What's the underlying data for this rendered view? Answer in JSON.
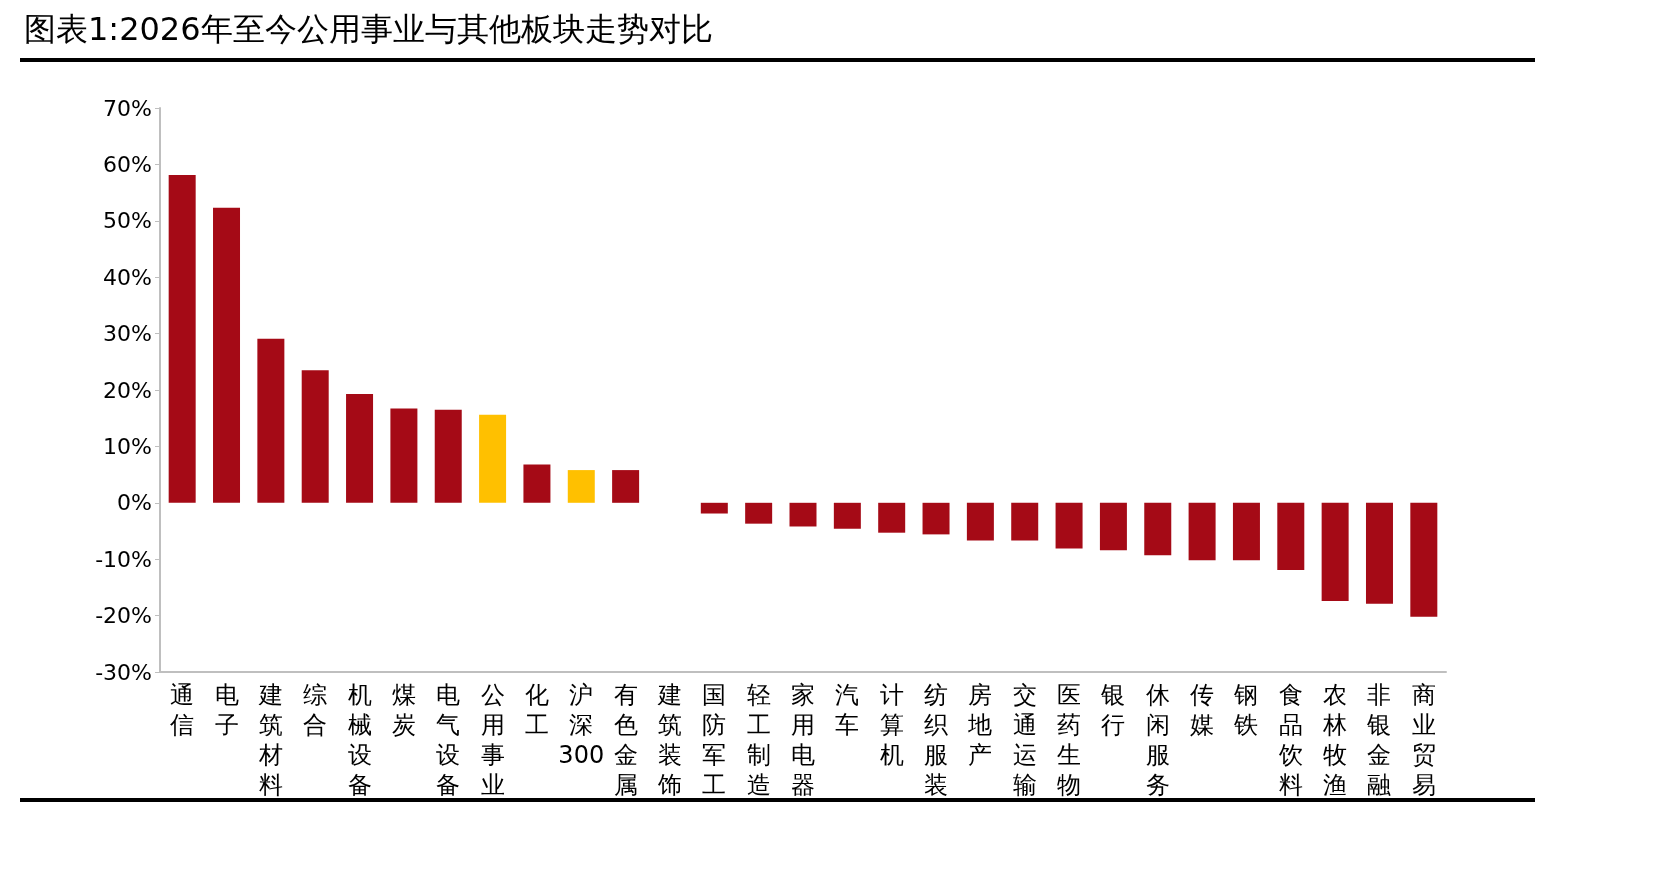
{
  "chart_data": {
    "type": "bar",
    "title": "图表1:2026年至今公用事业与其他板块走势对比",
    "categories": [
      "通信",
      "电子",
      "建筑材料",
      "综合",
      "机械设备",
      "煤炭",
      "电气设备",
      "公用事业",
      "化工",
      "沪深300",
      "有色金属",
      "建筑装饰",
      "国防军工",
      "轻工制造",
      "家用电器",
      "汽车",
      "计算机",
      "纺织服装",
      "房地产",
      "交通运输",
      "医药生物",
      "银行",
      "休闲服务",
      "传媒",
      "钢铁",
      "食品饮料",
      "农林牧渔",
      "非银金融",
      "商业贸易"
    ],
    "values": [
      58.1,
      52.3,
      29.1,
      23.5,
      19.3,
      16.7,
      16.5,
      15.6,
      6.8,
      5.8,
      5.8,
      0,
      -1.9,
      -3.7,
      -4.2,
      -4.6,
      -5.3,
      -5.6,
      -6.7,
      -6.7,
      -8.1,
      -8.4,
      -9.3,
      -10.2,
      -10.2,
      -11.9,
      -17.4,
      -17.9,
      -20.2
    ],
    "colors": [
      "#a50a16",
      "#a50a16",
      "#a50a16",
      "#a50a16",
      "#a50a16",
      "#a50a16",
      "#a50a16",
      "#ffc000",
      "#a50a16",
      "#ffc000",
      "#a50a16",
      "#a50a16",
      "#a50a16",
      "#a50a16",
      "#a50a16",
      "#a50a16",
      "#a50a16",
      "#a50a16",
      "#a50a16",
      "#a50a16",
      "#a50a16",
      "#a50a16",
      "#a50a16",
      "#a50a16",
      "#a50a16",
      "#a50a16",
      "#a50a16",
      "#a50a16",
      "#a50a16"
    ],
    "ylim": [
      -30,
      70
    ],
    "yticks": [
      {
        "value": -30,
        "label": "-30%"
      },
      {
        "value": -20,
        "label": "-20%"
      },
      {
        "value": -10,
        "label": "-10%"
      },
      {
        "value": 0,
        "label": "0%"
      },
      {
        "value": 10,
        "label": "10%"
      },
      {
        "value": 20,
        "label": "20%"
      },
      {
        "value": 30,
        "label": "30%"
      },
      {
        "value": 40,
        "label": "40%"
      },
      {
        "value": 50,
        "label": "50%"
      },
      {
        "value": 60,
        "label": "60%"
      },
      {
        "value": 70,
        "label": "70%"
      }
    ],
    "data_labels": false
  }
}
